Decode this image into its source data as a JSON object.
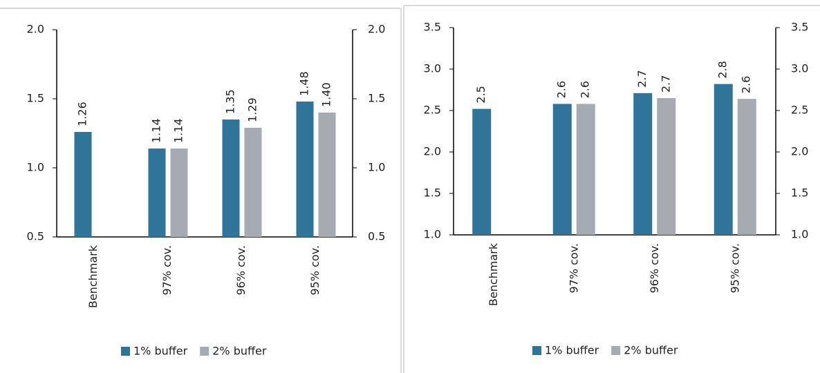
{
  "chart_data": [
    {
      "type": "bar",
      "categories": [
        "Benchmark",
        "97% cov.",
        "96% cov.",
        "95% cov."
      ],
      "series": [
        {
          "name": "1% buffer",
          "color": "#2e7599",
          "values": [
            1.26,
            1.14,
            1.35,
            1.48
          ],
          "value_labels": [
            "1.26",
            "1.14",
            "1.35",
            "1.48"
          ]
        },
        {
          "name": "2% buffer",
          "color": "#a5abb1",
          "values": [
            null,
            1.14,
            1.29,
            1.4
          ],
          "value_labels": [
            null,
            "1.14",
            "1.29",
            "1.40"
          ]
        }
      ],
      "ylim": [
        0.5,
        2.0
      ],
      "yticks": [
        {
          "value": 0.5,
          "label": "0.5"
        },
        {
          "value": 1.0,
          "label": "1.0"
        },
        {
          "value": 1.5,
          "label": "1.5"
        },
        {
          "value": 2.0,
          "label": "2.0"
        }
      ],
      "y2lim": [
        0.5,
        2.0
      ],
      "y2ticks": [
        {
          "value": 0.5,
          "label": "0.5"
        },
        {
          "value": 1.0,
          "label": "1.0"
        },
        {
          "value": 1.5,
          "label": "1.5"
        },
        {
          "value": 2.0,
          "label": "2.0"
        }
      ],
      "legend": "bottom"
    },
    {
      "type": "bar",
      "categories": [
        "Benchmark",
        "97% cov.",
        "96% cov.",
        "95% cov."
      ],
      "series": [
        {
          "name": "1% buffer",
          "color": "#2e7599",
          "values": [
            2.52,
            2.58,
            2.71,
            2.82
          ],
          "value_labels": [
            "2.5",
            "2.6",
            "2.7",
            "2.8"
          ]
        },
        {
          "name": "2% buffer",
          "color": "#a5abb1",
          "values": [
            null,
            2.58,
            2.65,
            2.64
          ],
          "value_labels": [
            null,
            "2.6",
            "2.7",
            "2.6"
          ]
        }
      ],
      "ylim": [
        1.0,
        3.5
      ],
      "yticks": [
        {
          "value": 1.0,
          "label": "1.0"
        },
        {
          "value": 1.5,
          "label": "1.5"
        },
        {
          "value": 2.0,
          "label": "2.0"
        },
        {
          "value": 2.5,
          "label": "2.5"
        },
        {
          "value": 3.0,
          "label": "3.0"
        },
        {
          "value": 3.5,
          "label": "3.5"
        }
      ],
      "y2lim": [
        1.0,
        3.5
      ],
      "y2ticks": [
        {
          "value": 1.0,
          "label": "1.0"
        },
        {
          "value": 1.5,
          "label": "1.5"
        },
        {
          "value": 2.0,
          "label": "2.0"
        },
        {
          "value": 2.5,
          "label": "2.5"
        },
        {
          "value": 3.0,
          "label": "3.0"
        },
        {
          "value": 3.5,
          "label": "3.5"
        }
      ],
      "legend": "bottom"
    }
  ]
}
